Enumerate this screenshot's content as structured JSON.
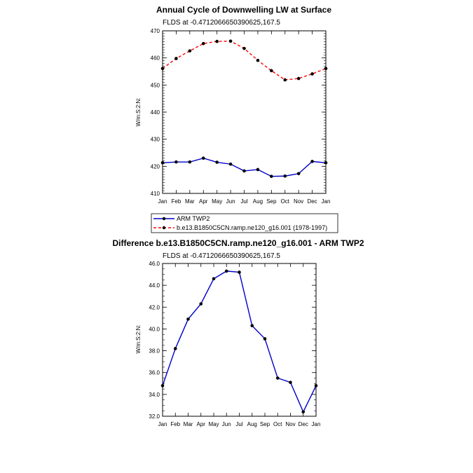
{
  "colors": {
    "obs_line": "#0000cc",
    "model_line": "#ff0000",
    "diff_line": "#0000cc",
    "marker": "#000000"
  },
  "chart_data": [
    {
      "type": "line",
      "title": "Annual Cycle of Downwelling LW at Surface",
      "subtitle": "FLDS at -0.4712066650390625,167.5",
      "ylabel": "W/m:S:2:N:",
      "xlabel": "",
      "categories": [
        "Jan",
        "Feb",
        "Mar",
        "Apr",
        "May",
        "Jun",
        "Jul",
        "Aug",
        "Sep",
        "Oct",
        "Nov",
        "Dec",
        "Jan"
      ],
      "ylim": [
        410,
        470
      ],
      "yticks": [
        "410",
        "420",
        "430",
        "440",
        "450",
        "460",
        "470"
      ],
      "grid": false,
      "legend_position": "below",
      "series": [
        {
          "name": "ARM TWP2",
          "style": "solid",
          "values": [
            421.3,
            421.6,
            421.6,
            423.0,
            421.5,
            420.8,
            418.3,
            418.8,
            416.3,
            416.4,
            417.3,
            421.8,
            421.3
          ]
        },
        {
          "name": "b.e13.B1850C5CN.ramp.ne120_g16.001 (1978-1997)",
          "style": "dashed",
          "values": [
            456.1,
            459.8,
            462.6,
            465.3,
            466.1,
            466.2,
            463.5,
            459.1,
            455.3,
            451.9,
            452.4,
            454.1,
            456.1
          ]
        }
      ]
    },
    {
      "type": "line",
      "title": "Difference b.e13.B1850C5CN.ramp.ne120_g16.001 - ARM TWP2",
      "subtitle": "FLDS at -0.4712066650390625,167.5",
      "ylabel": "W/m:S:2:N:",
      "xlabel": "",
      "categories": [
        "Jan",
        "Feb",
        "Mar",
        "Apr",
        "May",
        "Jun",
        "Jul",
        "Aug",
        "Sep",
        "Oct",
        "Nov",
        "Dec",
        "Jan"
      ],
      "ylim": [
        32.0,
        46.0
      ],
      "yticks": [
        "32.0",
        "34.0",
        "36.0",
        "38.0",
        "40.0",
        "42.0",
        "44.0",
        "46.0"
      ],
      "grid": false,
      "series": [
        {
          "values": [
            34.8,
            38.2,
            40.9,
            42.3,
            44.6,
            45.3,
            45.2,
            40.3,
            39.1,
            35.5,
            35.1,
            32.4,
            34.8
          ]
        }
      ]
    }
  ]
}
